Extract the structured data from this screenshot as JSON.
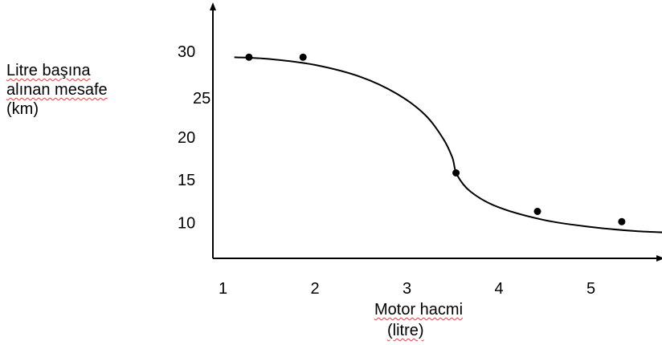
{
  "chart_data": {
    "type": "scatter",
    "ylabel_lines": [
      "Litre başına",
      "alınan mesafe",
      "(km)"
    ],
    "xlabel_lines": [
      "Motor hacmi",
      "(litre)"
    ],
    "x_ticks": [
      "1",
      "2",
      "3",
      "4",
      "5"
    ],
    "y_ticks": [
      "30",
      "25",
      "20",
      "15",
      "10"
    ],
    "xlim": [
      1,
      5.95
    ],
    "ylim": [
      6.8,
      33.8
    ],
    "points": [
      {
        "x": 1.28,
        "y": 29.5
      },
      {
        "x": 1.87,
        "y": 29.5
      },
      {
        "x": 3.54,
        "y": 16.0
      },
      {
        "x": 4.43,
        "y": 11.5
      },
      {
        "x": 5.35,
        "y": 10.3
      }
    ],
    "fit_curve": [
      {
        "x": 1.12,
        "y": 29.5
      },
      {
        "x": 1.5,
        "y": 29.3
      },
      {
        "x": 2.0,
        "y": 28.6
      },
      {
        "x": 2.5,
        "y": 27.2
      },
      {
        "x": 2.9,
        "y": 25.2
      },
      {
        "x": 3.2,
        "y": 22.8
      },
      {
        "x": 3.4,
        "y": 20.0
      },
      {
        "x": 3.5,
        "y": 17.8
      },
      {
        "x": 3.55,
        "y": 15.8
      },
      {
        "x": 3.7,
        "y": 13.8
      },
      {
        "x": 4.0,
        "y": 12.0
      },
      {
        "x": 4.5,
        "y": 10.5
      },
      {
        "x": 5.0,
        "y": 9.7
      },
      {
        "x": 5.5,
        "y": 9.2
      },
      {
        "x": 5.95,
        "y": 9.0
      }
    ],
    "grid": false,
    "legend": "none"
  }
}
